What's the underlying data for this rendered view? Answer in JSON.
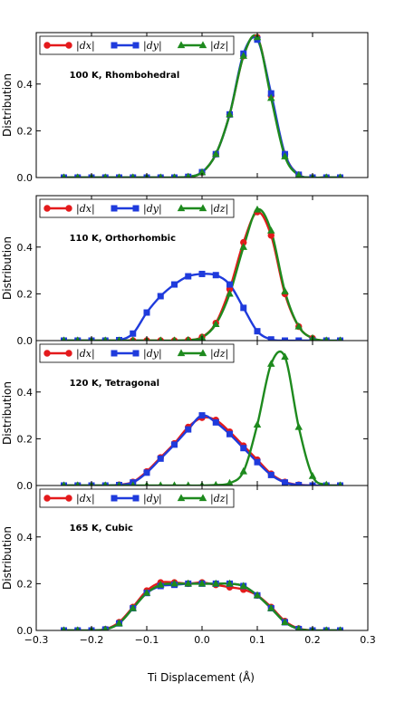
{
  "chart_data": {
    "type": "line",
    "xlabel": "Ti Displacement (Å)",
    "ylabel": "Distribution",
    "xlim": [
      -0.3,
      0.3
    ],
    "ylim": [
      0,
      0.62
    ],
    "xticks": [
      "−0.3",
      "−0.2",
      "−0.1",
      "0.0",
      "0.1",
      "0.2",
      "0.3"
    ],
    "yticks": [
      "0.0",
      "0.2",
      "0.4"
    ],
    "legend_position": "top-left",
    "legend": [
      {
        "label": "|dx|",
        "color": "#e41a1c",
        "marker": "circle"
      },
      {
        "label": "|dy|",
        "color": "#1f3bdc",
        "marker": "square"
      },
      {
        "label": "|dz|",
        "color": "#1e8a1e",
        "marker": "triangle"
      }
    ],
    "panels": [
      {
        "annotation": "100 K, Rhombohedral",
        "series": [
          {
            "name": "|dx|",
            "x": [
              -0.25,
              -0.225,
              -0.2,
              -0.175,
              -0.15,
              -0.125,
              -0.1,
              -0.075,
              -0.05,
              -0.025,
              0.0,
              0.025,
              0.05,
              0.075,
              0.1,
              0.125,
              0.15,
              0.175,
              0.2,
              0.225,
              0.25
            ],
            "values": [
              0,
              0,
              0,
              0,
              0,
              0,
              0,
              0,
              0,
              0.003,
              0.022,
              0.1,
              0.27,
              0.52,
              0.6,
              0.35,
              0.1,
              0.012,
              0,
              0,
              0
            ]
          },
          {
            "name": "|dy|",
            "x": [
              -0.25,
              -0.225,
              -0.2,
              -0.175,
              -0.15,
              -0.125,
              -0.1,
              -0.075,
              -0.05,
              -0.025,
              0.0,
              0.025,
              0.05,
              0.075,
              0.1,
              0.125,
              0.15,
              0.175,
              0.2,
              0.225,
              0.25
            ],
            "values": [
              0,
              0,
              0,
              0,
              0,
              0,
              0,
              0,
              0,
              0.003,
              0.023,
              0.1,
              0.27,
              0.53,
              0.59,
              0.36,
              0.1,
              0.012,
              0,
              0,
              0
            ]
          },
          {
            "name": "|dz|",
            "x": [
              -0.25,
              -0.225,
              -0.2,
              -0.175,
              -0.15,
              -0.125,
              -0.1,
              -0.075,
              -0.05,
              -0.025,
              0.0,
              0.025,
              0.05,
              0.075,
              0.1,
              0.125,
              0.15,
              0.175,
              0.2,
              0.225,
              0.25
            ],
            "values": [
              0,
              0,
              0,
              0,
              0,
              0,
              0,
              0,
              0,
              0.003,
              0.022,
              0.1,
              0.27,
              0.52,
              0.6,
              0.34,
              0.09,
              0.01,
              0,
              0,
              0
            ]
          }
        ]
      },
      {
        "annotation": "110 K, Orthorhombic",
        "series": [
          {
            "name": "|dx|",
            "x": [
              -0.25,
              -0.225,
              -0.2,
              -0.175,
              -0.15,
              -0.125,
              -0.1,
              -0.075,
              -0.05,
              -0.025,
              0.0,
              0.025,
              0.05,
              0.075,
              0.1,
              0.125,
              0.15,
              0.175,
              0.2,
              0.225,
              0.25
            ],
            "values": [
              0,
              0,
              0,
              0,
              0,
              0,
              0,
              0,
              0,
              0.002,
              0.015,
              0.075,
              0.22,
              0.42,
              0.55,
              0.45,
              0.2,
              0.06,
              0.01,
              0,
              0
            ]
          },
          {
            "name": "|dy|",
            "x": [
              -0.25,
              -0.225,
              -0.2,
              -0.175,
              -0.15,
              -0.125,
              -0.1,
              -0.075,
              -0.05,
              -0.025,
              0.0,
              0.025,
              0.05,
              0.075,
              0.1,
              0.125,
              0.15,
              0.175,
              0.2,
              0.225,
              0.25
            ],
            "values": [
              0,
              0,
              0,
              0,
              0.002,
              0.03,
              0.12,
              0.19,
              0.24,
              0.275,
              0.285,
              0.28,
              0.24,
              0.14,
              0.04,
              0.005,
              0,
              0,
              0,
              0,
              0
            ]
          },
          {
            "name": "|dz|",
            "x": [
              -0.25,
              -0.225,
              -0.2,
              -0.175,
              -0.15,
              -0.125,
              -0.1,
              -0.075,
              -0.05,
              -0.025,
              0.0,
              0.025,
              0.05,
              0.075,
              0.1,
              0.125,
              0.15,
              0.175,
              0.2,
              0.225,
              0.25
            ],
            "values": [
              0,
              0,
              0,
              0,
              0,
              0,
              0,
              0,
              0,
              0.002,
              0.013,
              0.07,
              0.2,
              0.4,
              0.56,
              0.47,
              0.21,
              0.06,
              0.01,
              0,
              0
            ]
          }
        ]
      },
      {
        "annotation": "120 K, Tetragonal",
        "series": [
          {
            "name": "|dx|",
            "x": [
              -0.25,
              -0.225,
              -0.2,
              -0.175,
              -0.15,
              -0.125,
              -0.1,
              -0.075,
              -0.05,
              -0.025,
              0.0,
              0.025,
              0.05,
              0.075,
              0.1,
              0.125,
              0.15,
              0.175,
              0.2,
              0.225,
              0.25
            ],
            "values": [
              0,
              0,
              0,
              0,
              0.003,
              0.015,
              0.06,
              0.12,
              0.18,
              0.25,
              0.29,
              0.28,
              0.23,
              0.17,
              0.11,
              0.05,
              0.015,
              0.003,
              0,
              0,
              0
            ]
          },
          {
            "name": "|dy|",
            "x": [
              -0.25,
              -0.225,
              -0.2,
              -0.175,
              -0.15,
              -0.125,
              -0.1,
              -0.075,
              -0.05,
              -0.025,
              0.0,
              0.025,
              0.05,
              0.075,
              0.1,
              0.125,
              0.15,
              0.175,
              0.2,
              0.225,
              0.25
            ],
            "values": [
              0,
              0,
              0,
              0,
              0.002,
              0.013,
              0.055,
              0.115,
              0.175,
              0.24,
              0.3,
              0.27,
              0.22,
              0.16,
              0.1,
              0.045,
              0.013,
              0.002,
              0,
              0,
              0
            ]
          },
          {
            "name": "|dz|",
            "x": [
              -0.25,
              -0.225,
              -0.2,
              -0.175,
              -0.15,
              -0.125,
              -0.1,
              -0.075,
              -0.05,
              -0.025,
              0.0,
              0.025,
              0.05,
              0.075,
              0.1,
              0.125,
              0.15,
              0.175,
              0.2,
              0.225,
              0.25
            ],
            "values": [
              0,
              0,
              0,
              0,
              0,
              0,
              0,
              0,
              0,
              0,
              0,
              0.002,
              0.01,
              0.06,
              0.26,
              0.52,
              0.55,
              0.25,
              0.04,
              0.003,
              0
            ]
          }
        ]
      },
      {
        "annotation": "165 K, Cubic",
        "series": [
          {
            "name": "|dx|",
            "x": [
              -0.25,
              -0.225,
              -0.2,
              -0.175,
              -0.15,
              -0.125,
              -0.1,
              -0.075,
              -0.05,
              -0.025,
              0.0,
              0.025,
              0.05,
              0.075,
              0.1,
              0.125,
              0.15,
              0.175,
              0.2,
              0.225,
              0.25
            ],
            "values": [
              0,
              0,
              0,
              0.005,
              0.035,
              0.1,
              0.17,
              0.205,
              0.205,
              0.2,
              0.205,
              0.195,
              0.185,
              0.175,
              0.15,
              0.1,
              0.04,
              0.008,
              0,
              0,
              0
            ]
          },
          {
            "name": "|dy|",
            "x": [
              -0.25,
              -0.225,
              -0.2,
              -0.175,
              -0.15,
              -0.125,
              -0.1,
              -0.075,
              -0.05,
              -0.025,
              0.0,
              0.025,
              0.05,
              0.075,
              0.1,
              0.125,
              0.15,
              0.175,
              0.2,
              0.225,
              0.25
            ],
            "values": [
              0,
              0,
              0,
              0.004,
              0.03,
              0.095,
              0.16,
              0.19,
              0.195,
              0.2,
              0.2,
              0.2,
              0.2,
              0.19,
              0.15,
              0.095,
              0.035,
              0.006,
              0,
              0,
              0
            ]
          },
          {
            "name": "|dz|",
            "x": [
              -0.25,
              -0.225,
              -0.2,
              -0.175,
              -0.15,
              -0.125,
              -0.1,
              -0.075,
              -0.05,
              -0.025,
              0.0,
              0.025,
              0.05,
              0.075,
              0.1,
              0.125,
              0.15,
              0.175,
              0.2,
              0.225,
              0.25
            ],
            "values": [
              0,
              0,
              0,
              0.004,
              0.03,
              0.095,
              0.16,
              0.195,
              0.2,
              0.2,
              0.2,
              0.2,
              0.2,
              0.19,
              0.15,
              0.095,
              0.035,
              0.006,
              0,
              0,
              0
            ]
          }
        ]
      }
    ]
  }
}
